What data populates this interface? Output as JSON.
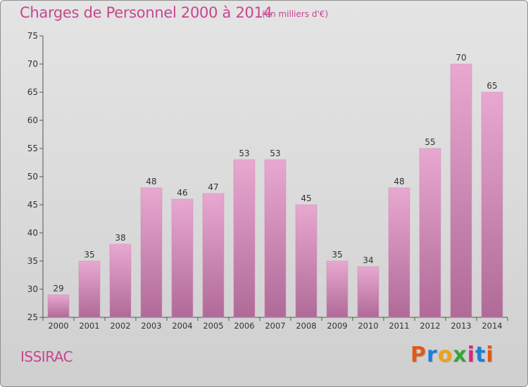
{
  "header": {
    "title": "Charges de Personnel 2000 à 2014",
    "subtitle": "(en milliers d'€)"
  },
  "footer": {
    "commune": "ISSIRAC",
    "logo_text": "Proxiti",
    "logo_colors": [
      "#e05a1a",
      "#1e7fd6",
      "#f0a11b",
      "#3aa33a",
      "#d62a7a",
      "#1e7fd6",
      "#e05a1a"
    ]
  },
  "colors": {
    "bar_top": "#e8a8d0",
    "bar_bottom": "#b06a98",
    "text": "#c8468f"
  },
  "chart_data": {
    "type": "bar",
    "title": "Charges de Personnel 2000 à 2014",
    "subtitle": "(en milliers d'€)",
    "categories": [
      "2000",
      "2001",
      "2002",
      "2003",
      "2004",
      "2005",
      "2006",
      "2007",
      "2008",
      "2009",
      "2010",
      "2011",
      "2012",
      "2013",
      "2014"
    ],
    "values": [
      29,
      35,
      38,
      48,
      46,
      47,
      53,
      53,
      45,
      35,
      34,
      48,
      55,
      70,
      65
    ],
    "ylim": [
      25,
      75
    ],
    "yticks": [
      25,
      30,
      35,
      40,
      45,
      50,
      55,
      60,
      65,
      70,
      75
    ],
    "grid": false,
    "data_labels": true
  }
}
